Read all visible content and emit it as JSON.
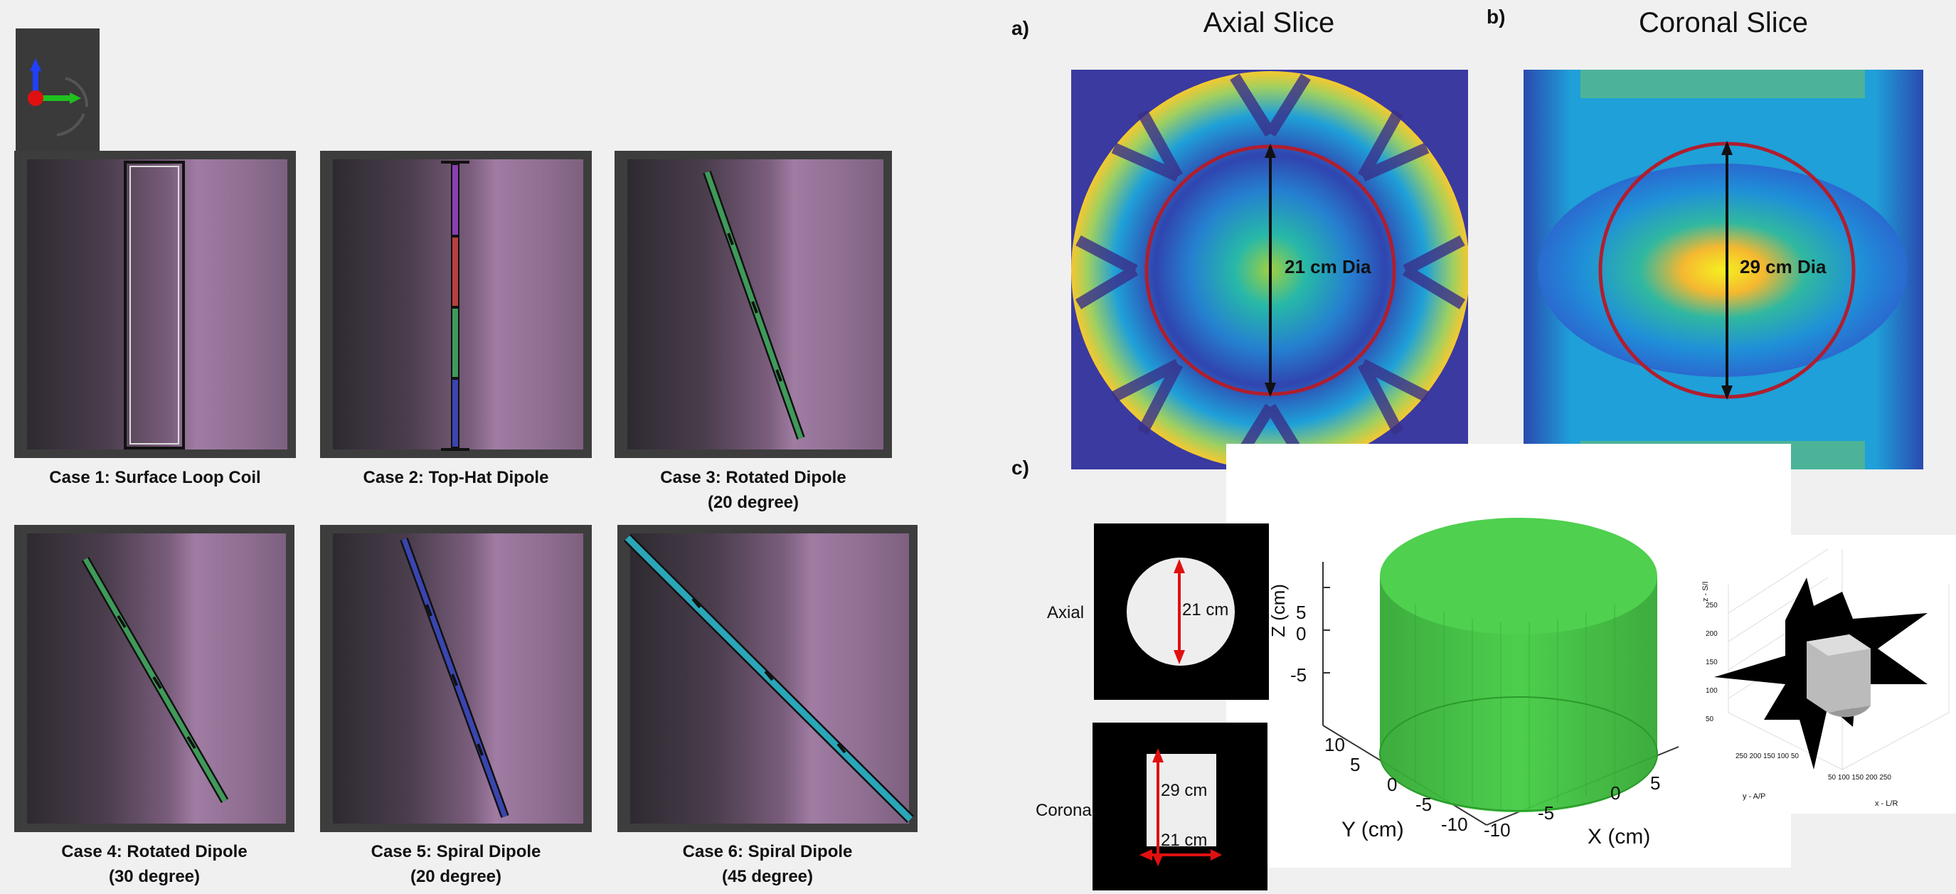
{
  "cases": [
    {
      "line1": "Case 1: Surface Loop Coil",
      "line2": ""
    },
    {
      "line1": "Case 2: Top-Hat Dipole",
      "line2": ""
    },
    {
      "line1": "Case 3: Rotated Dipole",
      "line2": "(20 degree)"
    },
    {
      "line1": "Case 4: Rotated Dipole",
      "line2": "(30 degree)"
    },
    {
      "line1": "Case 5: Spiral Dipole",
      "line2": "(20 degree)"
    },
    {
      "line1": "Case 6: Spiral Dipole",
      "line2": "(45 degree)"
    }
  ],
  "panel_a": {
    "letter": "a)",
    "title": "Axial Slice",
    "label": "21 cm Dia"
  },
  "panel_b": {
    "letter": "b)",
    "title": "Coronal Slice",
    "label": "29 cm Dia"
  },
  "panel_c": {
    "letter": "c)",
    "axial_label": "Axial",
    "coronal_label": "Corona",
    "axial_dim": "21 cm",
    "coronal_height": "29 cm",
    "coronal_width": "21 cm",
    "z_label": "Z (cm)",
    "y_label": "Y (cm)",
    "x_label": "X (cm)",
    "z_ticks": [
      "5",
      "0",
      "-5"
    ],
    "y_ticks": [
      "10",
      "5",
      "0",
      "-5",
      "-10"
    ],
    "x_ticks": [
      "-10",
      "-5",
      "0",
      "5"
    ],
    "mini_z_label": "z - S/I",
    "mini_y_label": "y - A/P",
    "mini_x_label": "x - L/R",
    "mini_z_ticks": [
      "250",
      "200",
      "150",
      "100",
      "50"
    ],
    "mini_y_ticks": [
      "250",
      "200",
      "150",
      "100",
      "50"
    ],
    "mini_x_ticks": [
      "50",
      "100",
      "150",
      "200",
      "250"
    ]
  },
  "colors": {
    "circle": "#b01e2e",
    "arrow": "#111111",
    "dim_arrow": "#e01010",
    "cylinder": "#3fc43f",
    "heat_low": "#3a3aa0",
    "heat_mid": "#1fb0c8",
    "heat_high": "#f5e020"
  }
}
